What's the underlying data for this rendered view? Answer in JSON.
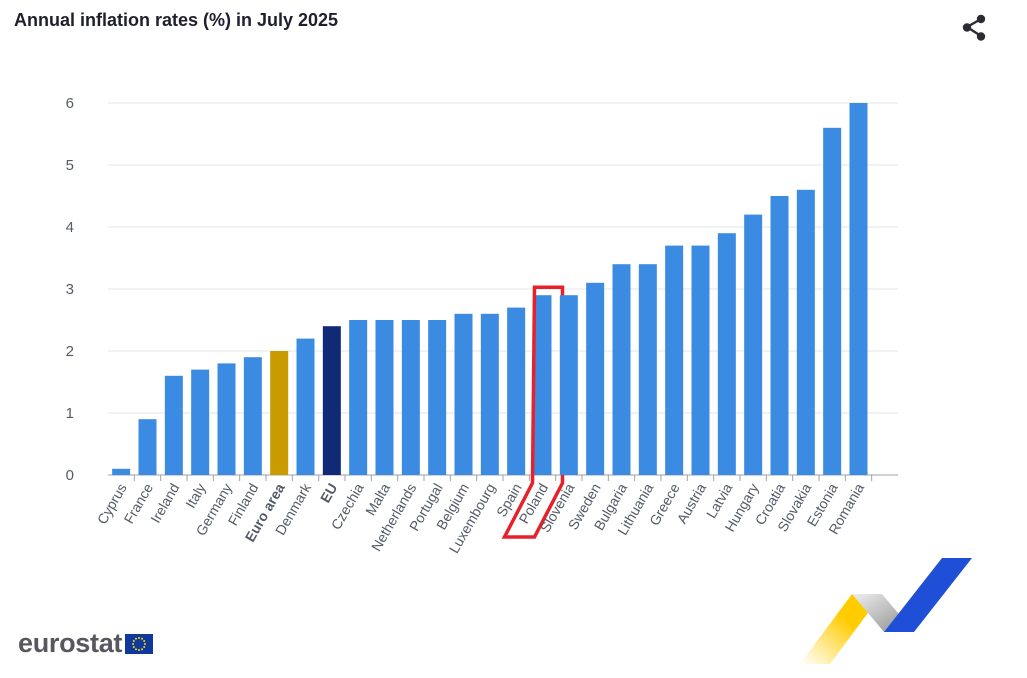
{
  "title": "Annual inflation rates (%) in July 2025",
  "brand": "eurostat",
  "icons": {
    "share": "share-icon",
    "flag": "eu-flag-icon"
  },
  "colors": {
    "bar": "#3b8be3",
    "euro_area": "#c99b00",
    "eu": "#0f2b78",
    "grid": "#e3e5ea",
    "highlight": "#e8202a"
  },
  "chart_data": {
    "type": "bar",
    "title": "Annual inflation rates (%) in July 2025",
    "xlabel": "",
    "ylabel": "",
    "ylim": [
      0,
      6
    ],
    "yticks": [
      "0",
      "1",
      "2",
      "3",
      "4",
      "5",
      "6"
    ],
    "grid": true,
    "categories": [
      "Cyprus",
      "France",
      "Ireland",
      "Italy",
      "Germany",
      "Finland",
      "Euro area",
      "Denmark",
      "EU",
      "Czechia",
      "Malta",
      "Netherlands",
      "Portugal",
      "Belgium",
      "Luxembourg",
      "Spain",
      "Poland",
      "Slovenia",
      "Sweden",
      "Bulgaria",
      "Lithuania",
      "Greece",
      "Austria",
      "Latvia",
      "Hungary",
      "Croatia",
      "Slovakia",
      "Estonia",
      "Romania"
    ],
    "values": [
      0.1,
      0.9,
      1.6,
      1.7,
      1.8,
      1.9,
      2.0,
      2.2,
      2.4,
      2.5,
      2.5,
      2.5,
      2.5,
      2.6,
      2.6,
      2.7,
      2.9,
      2.9,
      3.1,
      3.4,
      3.4,
      3.7,
      3.7,
      3.9,
      4.2,
      4.5,
      4.6,
      5.6,
      6.0
    ],
    "bold_categories": [
      "Euro area",
      "EU"
    ],
    "highlighted_category": "Poland"
  }
}
